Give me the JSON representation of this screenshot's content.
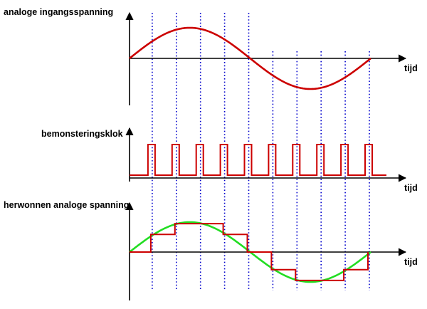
{
  "panels": {
    "input": {
      "title": "analoge ingangsspanning",
      "time_label": "tijd"
    },
    "clock": {
      "title": "bemonsteringsklok",
      "time_label": "tijd"
    },
    "recovered": {
      "title": "herwonnen analoge spanning",
      "time_label": "tijd"
    }
  },
  "colors": {
    "signal": "#cc0000",
    "recovered_sine": "#22dd22",
    "sample_lines": "#0000cc",
    "axes": "#000000"
  },
  "sampling": {
    "samples_per_period": 10
  }
}
